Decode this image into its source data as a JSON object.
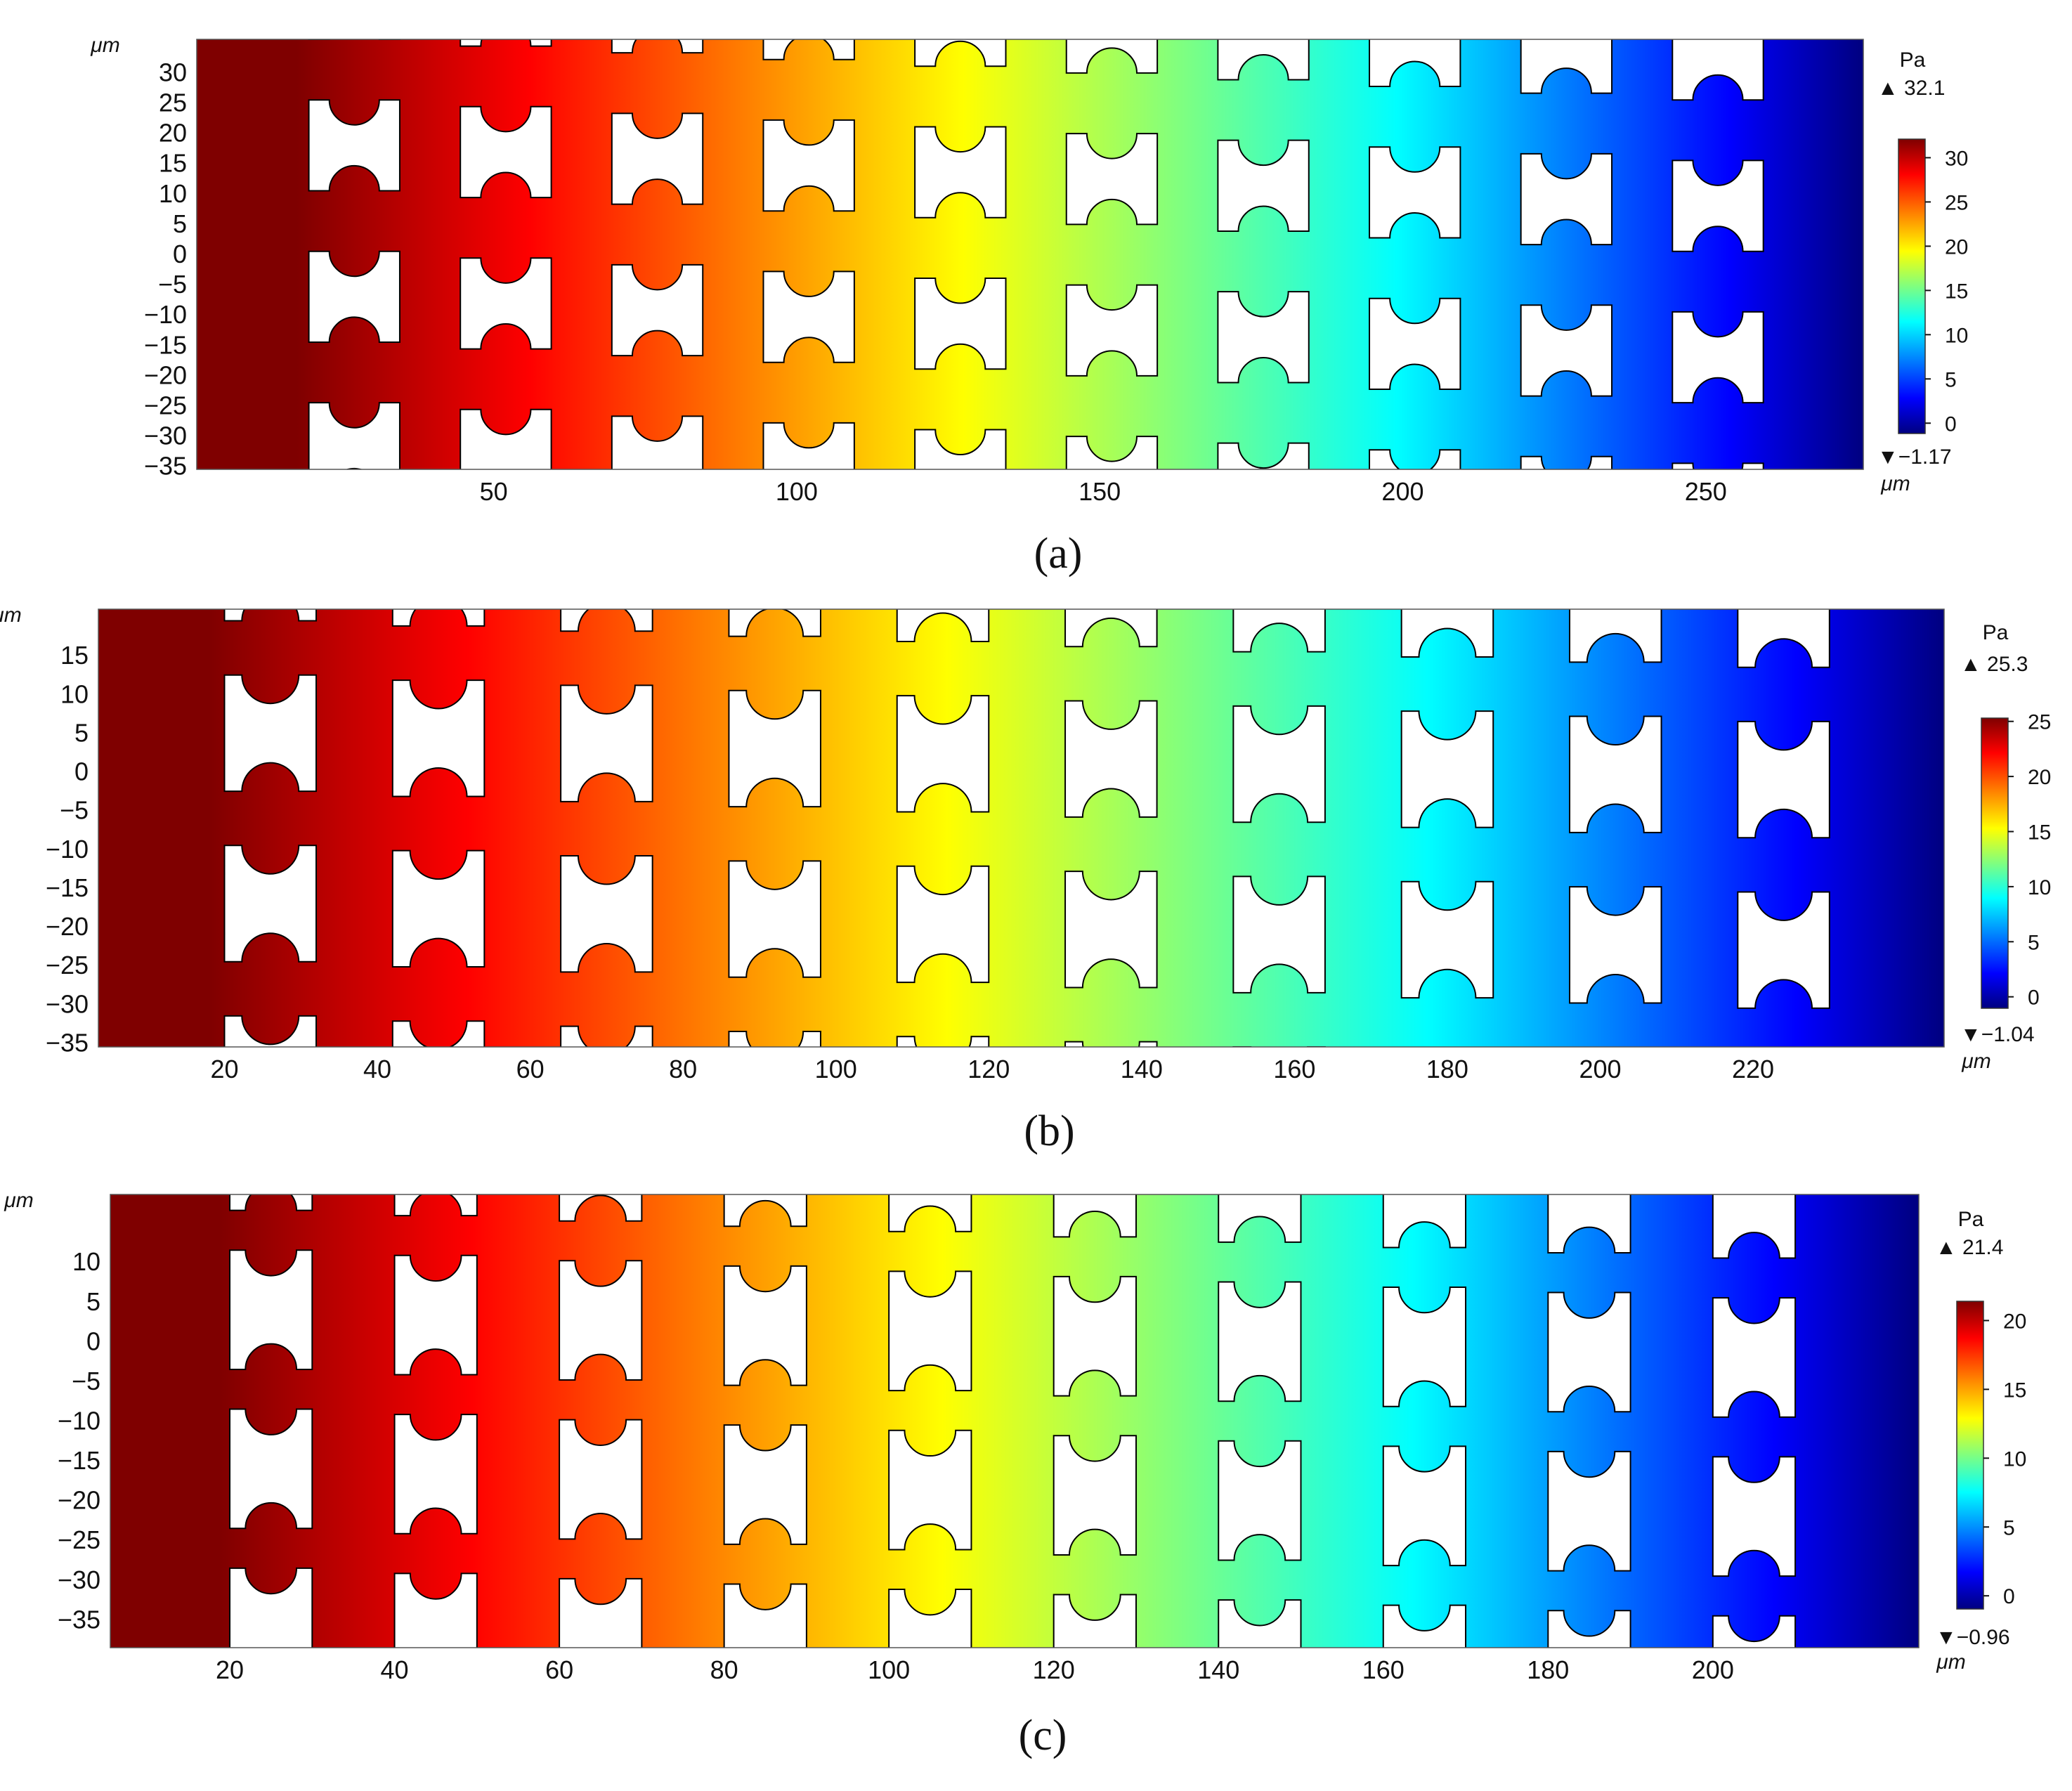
{
  "chart_data": [
    {
      "type": "heatmap",
      "panel_label": "(a)",
      "x_tick_labels": [
        "50",
        "100",
        "150",
        "200",
        "250"
      ],
      "y_tick_labels": [
        "30",
        "25",
        "20",
        "15",
        "10",
        "5",
        "0",
        "−5",
        "−10",
        "−15",
        "−20",
        "−25",
        "−30",
        "−35"
      ],
      "x_unit": "μm",
      "y_unit": "μm",
      "xlim": [
        1,
        276
      ],
      "ylim": [
        -35.5,
        35.5
      ],
      "colorbar": {
        "unit": "Pa",
        "max_label": "▲ 32.1",
        "min_label": "▼−1.17",
        "max": 32.1,
        "min": -1.17,
        "tick_labels": [
          "30",
          "25",
          "20",
          "15",
          "10",
          "5",
          "0"
        ],
        "ticks": [
          30,
          25,
          20,
          15,
          10,
          5,
          0
        ]
      },
      "field": "pressure decreasing linearly from left (max) to right (min)",
      "pillar_columns_x": [
        27,
        52,
        77,
        102,
        127,
        152,
        177,
        202,
        227,
        252
      ],
      "pillar_rows_y": [
        18,
        -7,
        -32
      ]
    },
    {
      "type": "heatmap",
      "panel_label": "(b)",
      "x_tick_labels": [
        "20",
        "40",
        "60",
        "80",
        "100",
        "120",
        "140",
        "160",
        "180",
        "200",
        "220"
      ],
      "y_tick_labels": [
        "15",
        "10",
        "5",
        "0",
        "−5",
        "−10",
        "−15",
        "−20",
        "−25",
        "−30",
        "−35"
      ],
      "x_unit": "μm",
      "y_unit": "μm",
      "xlim": [
        3.5,
        245
      ],
      "ylim": [
        -35.5,
        21
      ],
      "colorbar": {
        "unit": "Pa",
        "max_label": "▲ 25.3",
        "min_label": "▼−1.04",
        "max": 25.3,
        "min": -1.04,
        "tick_labels": [
          "25",
          "20",
          "15",
          "10",
          "5",
          "0"
        ],
        "ticks": [
          25,
          20,
          15,
          10,
          5,
          0
        ]
      },
      "field": "pressure decreasing linearly from left (max) to right (min)",
      "pillar_columns_x": [
        26,
        48,
        70,
        92,
        114,
        136,
        158,
        180,
        202,
        224
      ],
      "pillar_rows_y": [
        5,
        -17,
        -39
      ]
    },
    {
      "type": "heatmap",
      "panel_label": "(c)",
      "x_tick_labels": [
        "20",
        "40",
        "60",
        "80",
        "100",
        "120",
        "140",
        "160",
        "180",
        "200"
      ],
      "y_tick_labels": [
        "10",
        "5",
        "0",
        "−5",
        "−10",
        "−15",
        "−20",
        "−25",
        "−30",
        "−35"
      ],
      "x_unit": "μm",
      "y_unit": "μm",
      "xlim": [
        5.5,
        225
      ],
      "ylim": [
        -38.5,
        18.5
      ],
      "colorbar": {
        "unit": "Pa",
        "max_label": "▲ 21.4",
        "min_label": "▼−0.96",
        "max": 21.4,
        "min": -0.96,
        "tick_labels": [
          "20",
          "15",
          "10",
          "5",
          "0"
        ],
        "ticks": [
          20,
          15,
          10,
          5,
          0
        ]
      },
      "field": "pressure decreasing linearly from left (max) to right (min)",
      "pillar_columns_x": [
        25,
        45,
        65,
        85,
        105,
        125,
        145,
        165,
        185,
        205
      ],
      "pillar_rows_y": [
        4,
        -16,
        -36
      ]
    }
  ],
  "colors": {
    "jet_stops": [
      "#7f0000",
      "#ff0000",
      "#ffff00",
      "#00ffff",
      "#0000ff",
      "#000080"
    ],
    "pillar_fill": "#ffffff",
    "pillar_stroke": "#000000"
  }
}
